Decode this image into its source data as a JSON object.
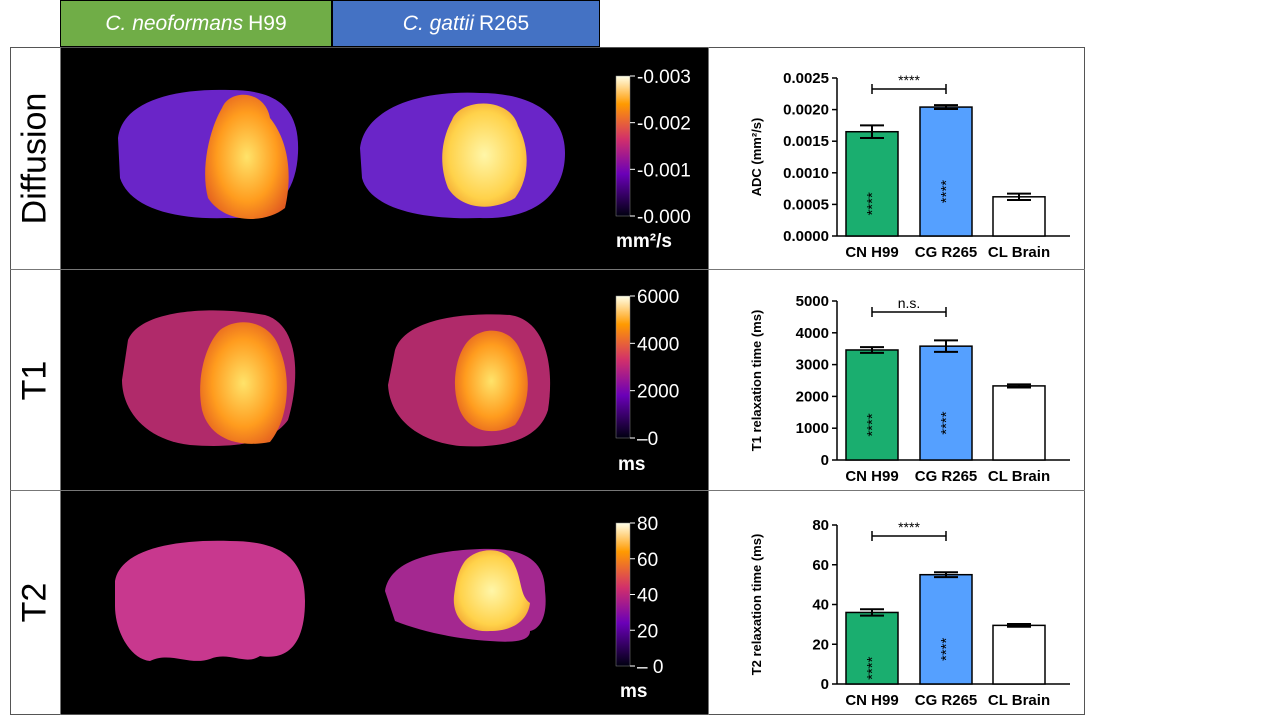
{
  "headers": {
    "cn": {
      "species": "C. neoformans",
      "strain": "H99",
      "color": "#70ad47"
    },
    "cg": {
      "species": "C. gattii",
      "strain": "R265",
      "color": "#4472c4"
    }
  },
  "rows": [
    {
      "label": "Diffusion",
      "colorbar": {
        "ticks": [
          "0.003",
          "0.002",
          "0.001",
          "0.000"
        ],
        "unit": "mm²/s"
      }
    },
    {
      "label": "T1",
      "colorbar": {
        "ticks": [
          "6000",
          "4000",
          "2000",
          "0"
        ],
        "unit": "ms"
      }
    },
    {
      "label": "T2",
      "colorbar": {
        "ticks": [
          "80",
          "60",
          "40",
          "20",
          "0"
        ],
        "unit": "ms"
      }
    }
  ],
  "chart_data": [
    {
      "type": "bar",
      "categories": [
        "CN H99",
        "CG R265",
        "CL Brain"
      ],
      "values": [
        0.00165,
        0.00204,
        0.00062
      ],
      "errors": [
        0.0001,
        3e-05,
        5e-05
      ],
      "colors": [
        "#1aae6f",
        "#55a0ff",
        "#ffffff"
      ],
      "ylabel": "ADC (mm²/s)",
      "ylim": [
        0,
        0.0025
      ],
      "yticks": [
        "0.0000",
        "0.0005",
        "0.0010",
        "0.0015",
        "0.0020",
        "0.0025"
      ],
      "bar_labels": [
        "****",
        "****",
        ""
      ],
      "comparison": {
        "from": 0,
        "to": 1,
        "label": "****"
      }
    },
    {
      "type": "bar",
      "categories": [
        "CN H99",
        "CG R265",
        "CL Brain"
      ],
      "values": [
        3460,
        3580,
        2330
      ],
      "errors": [
        90,
        180,
        50
      ],
      "colors": [
        "#1aae6f",
        "#55a0ff",
        "#ffffff"
      ],
      "ylabel": "T1 relaxation time (ms)",
      "ylim": [
        0,
        5000
      ],
      "yticks": [
        "0",
        "1000",
        "2000",
        "3000",
        "4000",
        "5000"
      ],
      "bar_labels": [
        "****",
        "****",
        ""
      ],
      "comparison": {
        "from": 0,
        "to": 1,
        "label": "n.s."
      }
    },
    {
      "type": "bar",
      "categories": [
        "CN H99",
        "CG R265",
        "CL Brain"
      ],
      "values": [
        36,
        55,
        29.5
      ],
      "errors": [
        1.6,
        1.2,
        0.7
      ],
      "colors": [
        "#1aae6f",
        "#55a0ff",
        "#ffffff"
      ],
      "ylabel": "T2 relaxation time (ms)",
      "ylim": [
        0,
        80
      ],
      "yticks": [
        "0",
        "20",
        "40",
        "60",
        "80"
      ],
      "bar_labels": [
        "****",
        "****",
        ""
      ],
      "comparison": {
        "from": 0,
        "to": 1,
        "label": "****"
      }
    }
  ]
}
